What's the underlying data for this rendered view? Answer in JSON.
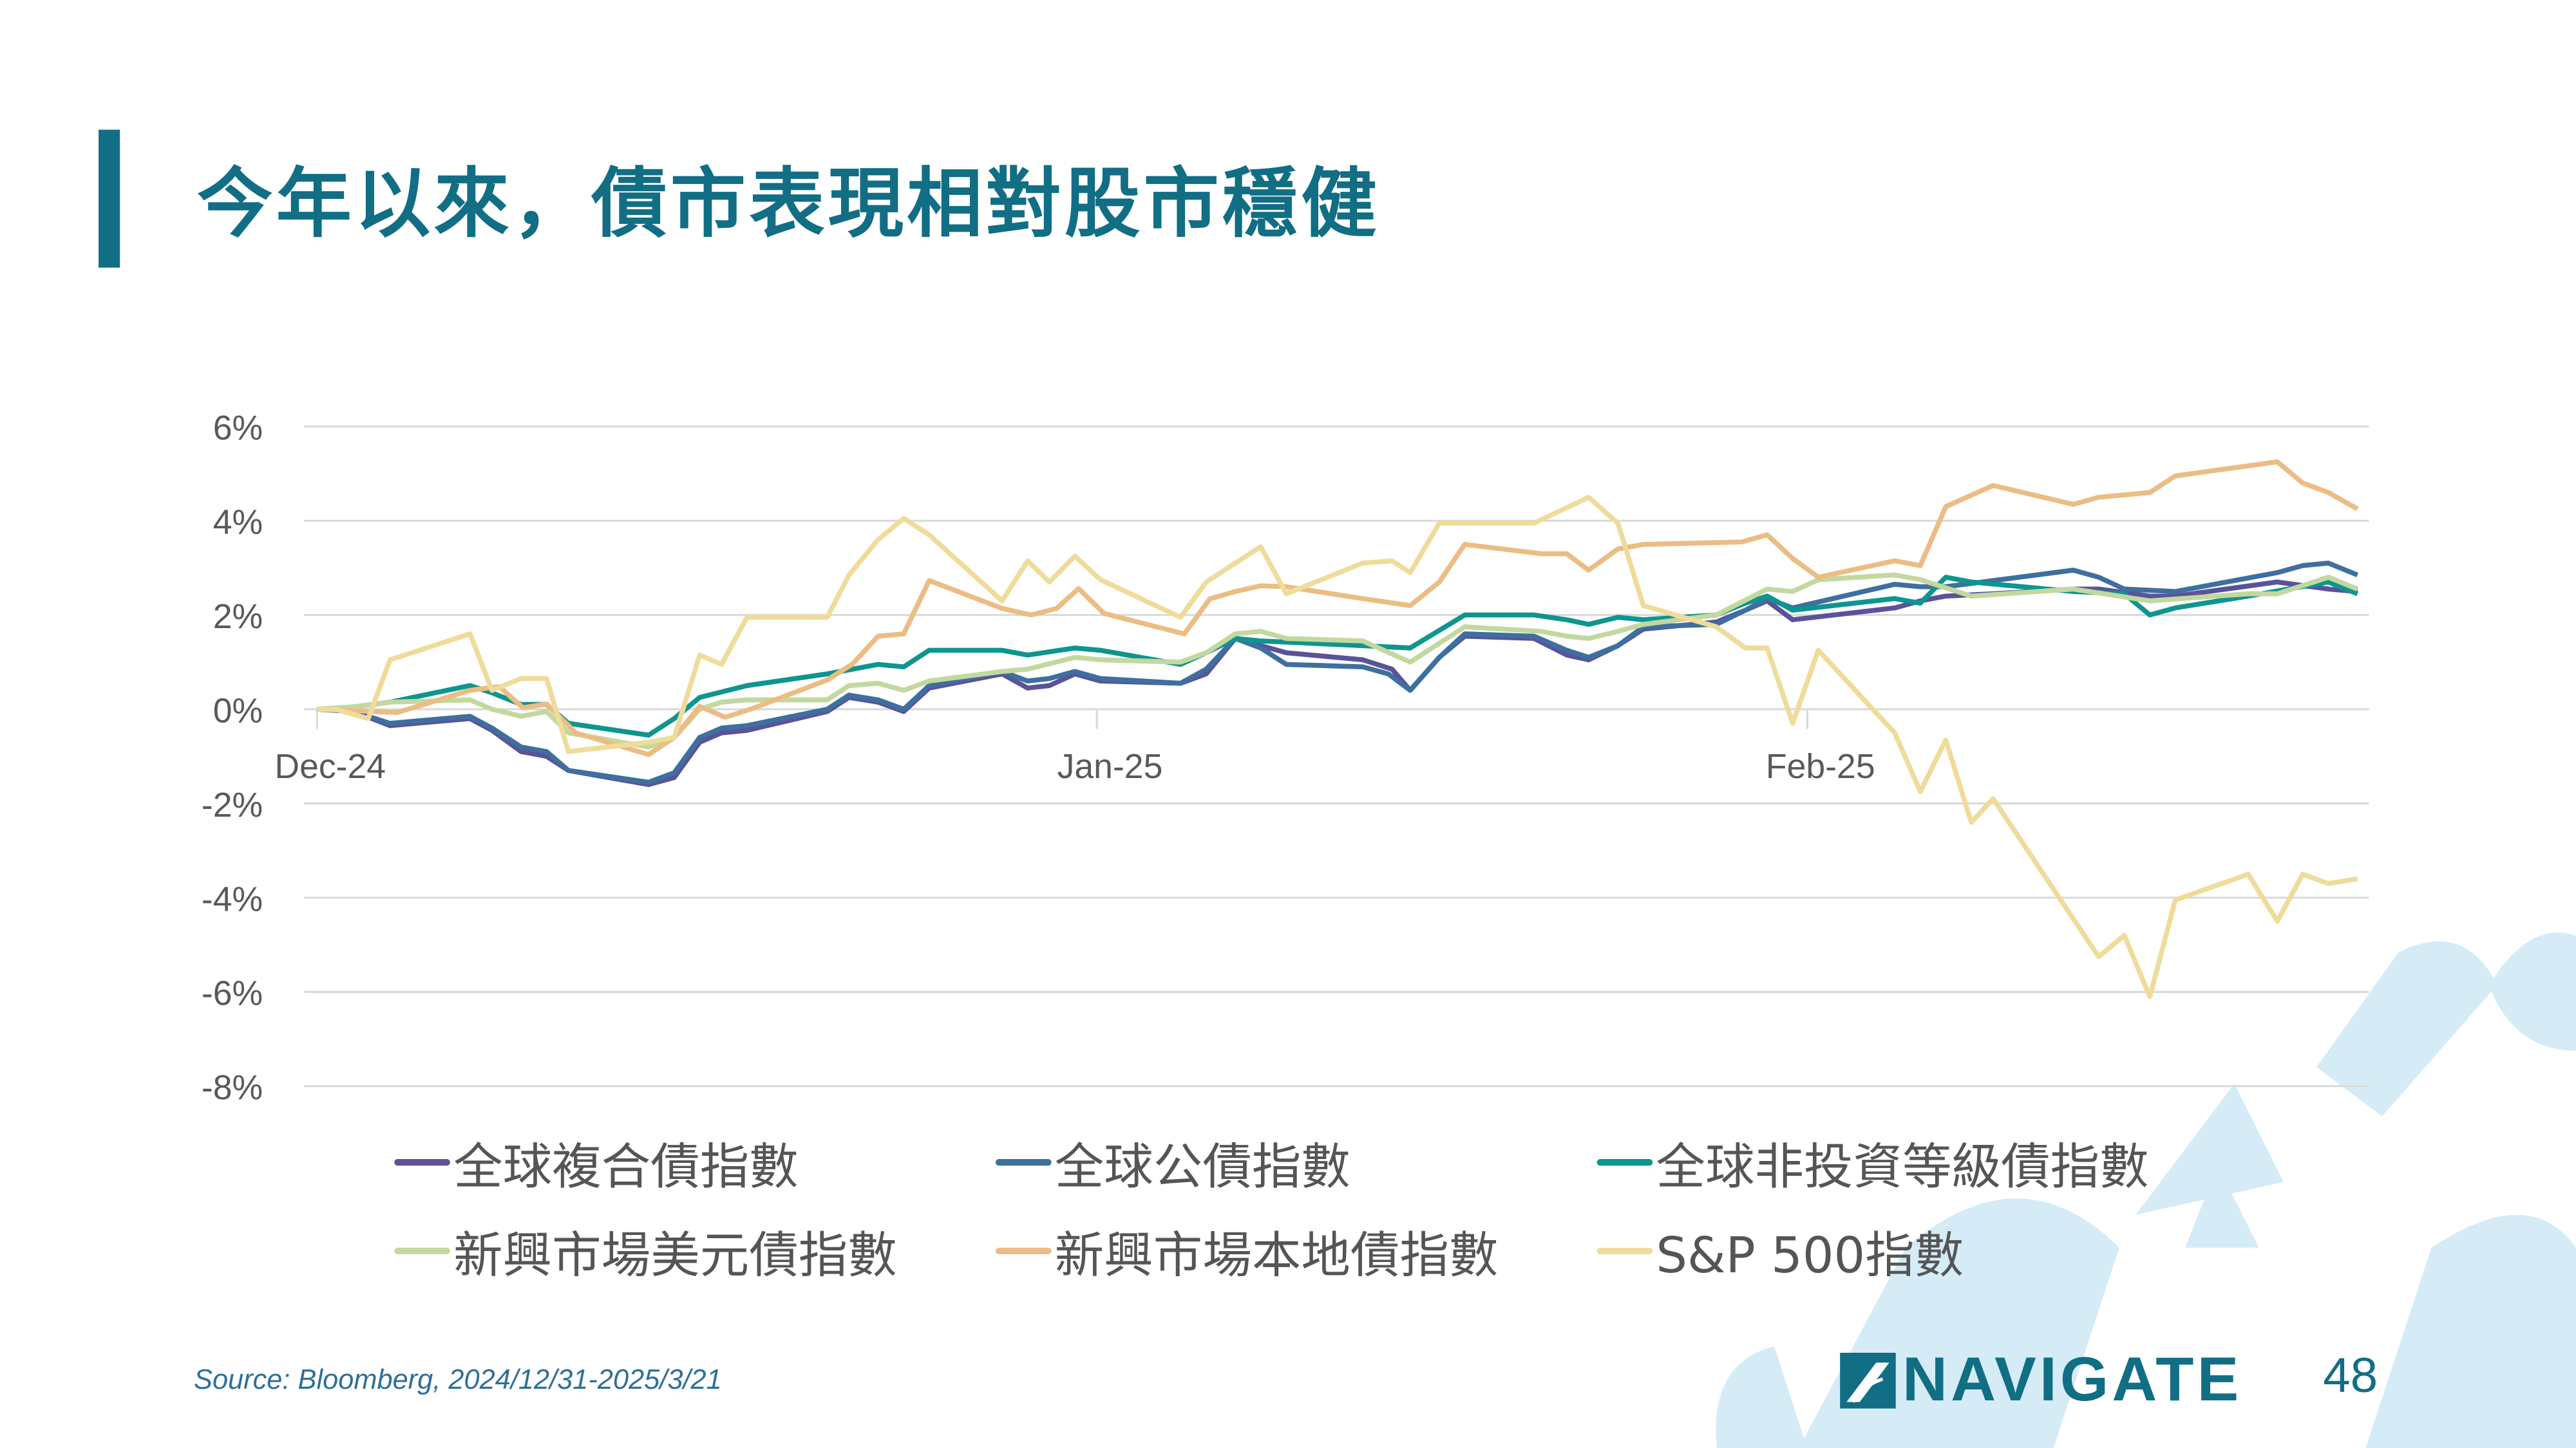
{
  "title": "今年以來，債市表現相對股市穩健",
  "source": "Source: Bloomberg, 2024/12/31-2025/3/21",
  "logo_text": "NAVIGATE",
  "page_number": "48",
  "chart_data": {
    "type": "line",
    "title": "",
    "xlabel": "",
    "ylabel": "",
    "x_unit": "trading days since 2024/12/31",
    "xlim": [
      0,
      56
    ],
    "ylim": [
      -8,
      6
    ],
    "yticks": [
      6,
      4,
      2,
      0,
      -2,
      -4,
      -6,
      -8
    ],
    "ytick_labels": [
      "6%",
      "4%",
      "2%",
      "0%",
      "-2%",
      "-4%",
      "-6%",
      "-8%"
    ],
    "xticks": [
      {
        "label": "Dec-24",
        "x": 0
      },
      {
        "label": "Jan-25",
        "x": 21.4
      },
      {
        "label": "Feb-25",
        "x": 40.9
      }
    ],
    "grid": true,
    "legend_position": "bottom",
    "series": [
      {
        "name": "全球複合債指數",
        "color": "#5a5399",
        "points": [
          [
            0,
            0
          ],
          [
            1,
            -0.05
          ],
          [
            2,
            -0.35
          ],
          [
            4.2,
            -0.2
          ],
          [
            4.8,
            -0.45
          ],
          [
            5.6,
            -0.9
          ],
          [
            6.3,
            -1.0
          ],
          [
            6.9,
            -1.3
          ],
          [
            9.1,
            -1.6
          ],
          [
            9.8,
            -1.45
          ],
          [
            10.5,
            -0.7
          ],
          [
            11.1,
            -0.5
          ],
          [
            11.8,
            -0.45
          ],
          [
            14,
            -0.05
          ],
          [
            14.6,
            0.25
          ],
          [
            15.4,
            0.15
          ],
          [
            16.1,
            -0.05
          ],
          [
            16.8,
            0.45
          ],
          [
            18.8,
            0.75
          ],
          [
            19.5,
            0.45
          ],
          [
            20.1,
            0.5
          ],
          [
            20.8,
            0.75
          ],
          [
            21.5,
            0.6
          ],
          [
            23.7,
            0.55
          ],
          [
            24.4,
            0.75
          ],
          [
            25.2,
            1.5
          ],
          [
            26.6,
            1.2
          ],
          [
            28.7,
            1.05
          ],
          [
            29.5,
            0.85
          ],
          [
            30,
            0.4
          ],
          [
            30.8,
            1.1
          ],
          [
            31.5,
            1.55
          ],
          [
            33.4,
            1.5
          ],
          [
            34.3,
            1.15
          ],
          [
            34.9,
            1.05
          ],
          [
            35.7,
            1.35
          ],
          [
            36.4,
            1.7
          ],
          [
            38.4,
            1.85
          ],
          [
            39.2,
            2.1
          ],
          [
            39.8,
            2.3
          ],
          [
            40.5,
            1.9
          ],
          [
            43.3,
            2.15
          ],
          [
            44,
            2.3
          ],
          [
            44.7,
            2.4
          ],
          [
            46,
            2.45
          ],
          [
            48.2,
            2.55
          ],
          [
            48.9,
            2.55
          ],
          [
            50.3,
            2.4
          ],
          [
            51,
            2.4
          ],
          [
            53.8,
            2.7
          ],
          [
            55.2,
            2.55
          ],
          [
            56,
            2.5
          ]
        ]
      },
      {
        "name": "全球公債指數",
        "color": "#3e6f9f",
        "points": [
          [
            0,
            0
          ],
          [
            1,
            -0.05
          ],
          [
            2,
            -0.3
          ],
          [
            4.2,
            -0.15
          ],
          [
            4.8,
            -0.4
          ],
          [
            5.6,
            -0.8
          ],
          [
            6.3,
            -0.9
          ],
          [
            6.9,
            -1.3
          ],
          [
            9.1,
            -1.55
          ],
          [
            9.8,
            -1.35
          ],
          [
            10.5,
            -0.6
          ],
          [
            11.1,
            -0.4
          ],
          [
            11.8,
            -0.35
          ],
          [
            14,
            0
          ],
          [
            14.6,
            0.3
          ],
          [
            15.4,
            0.2
          ],
          [
            16.1,
            0
          ],
          [
            16.8,
            0.5
          ],
          [
            18.8,
            0.8
          ],
          [
            19.5,
            0.6
          ],
          [
            20.1,
            0.65
          ],
          [
            20.8,
            0.8
          ],
          [
            21.5,
            0.65
          ],
          [
            23.7,
            0.55
          ],
          [
            24.4,
            0.85
          ],
          [
            25.2,
            1.5
          ],
          [
            25.9,
            1.3
          ],
          [
            26.6,
            0.95
          ],
          [
            28.7,
            0.9
          ],
          [
            29.4,
            0.75
          ],
          [
            30,
            0.4
          ],
          [
            30.8,
            1.1
          ],
          [
            31.5,
            1.6
          ],
          [
            33.4,
            1.55
          ],
          [
            34.3,
            1.25
          ],
          [
            34.9,
            1.1
          ],
          [
            35.7,
            1.35
          ],
          [
            36.4,
            1.75
          ],
          [
            38.4,
            1.8
          ],
          [
            39.2,
            2.1
          ],
          [
            39.8,
            2.35
          ],
          [
            40.5,
            2.15
          ],
          [
            43.3,
            2.65
          ],
          [
            44,
            2.6
          ],
          [
            44.7,
            2.6
          ],
          [
            48.2,
            2.95
          ],
          [
            48.9,
            2.8
          ],
          [
            49.6,
            2.55
          ],
          [
            51,
            2.5
          ],
          [
            53.8,
            2.9
          ],
          [
            54.5,
            3.05
          ],
          [
            55.2,
            3.1
          ],
          [
            56,
            2.85
          ]
        ]
      },
      {
        "name": "全球非投資等級債指數",
        "color": "#0e958f",
        "points": [
          [
            0,
            0
          ],
          [
            1,
            0.05
          ],
          [
            2,
            0.15
          ],
          [
            4.2,
            0.5
          ],
          [
            4.8,
            0.35
          ],
          [
            5.6,
            0.1
          ],
          [
            6.3,
            0.1
          ],
          [
            6.9,
            -0.3
          ],
          [
            9.1,
            -0.55
          ],
          [
            9.8,
            -0.2
          ],
          [
            10.5,
            0.25
          ],
          [
            11.8,
            0.5
          ],
          [
            14,
            0.75
          ],
          [
            15.4,
            0.95
          ],
          [
            16.1,
            0.9
          ],
          [
            16.8,
            1.25
          ],
          [
            18.8,
            1.25
          ],
          [
            19.5,
            1.15
          ],
          [
            20.8,
            1.3
          ],
          [
            21.5,
            1.25
          ],
          [
            23.7,
            0.95
          ],
          [
            24.4,
            1.2
          ],
          [
            25.2,
            1.5
          ],
          [
            25.9,
            1.45
          ],
          [
            28.7,
            1.35
          ],
          [
            30,
            1.3
          ],
          [
            31.5,
            2.0
          ],
          [
            33.4,
            2.0
          ],
          [
            34.3,
            1.9
          ],
          [
            34.9,
            1.8
          ],
          [
            35.7,
            1.95
          ],
          [
            36.4,
            1.9
          ],
          [
            38.4,
            2.0
          ],
          [
            39.2,
            2.25
          ],
          [
            39.8,
            2.4
          ],
          [
            40.5,
            2.1
          ],
          [
            43.3,
            2.35
          ],
          [
            44,
            2.25
          ],
          [
            44.7,
            2.8
          ],
          [
            45.4,
            2.7
          ],
          [
            48.2,
            2.5
          ],
          [
            49.6,
            2.45
          ],
          [
            50.3,
            2.0
          ],
          [
            51,
            2.15
          ],
          [
            53,
            2.4
          ],
          [
            55.2,
            2.7
          ],
          [
            56,
            2.45
          ]
        ]
      },
      {
        "name": "新興市場美元債指數",
        "color": "#c3d89f",
        "points": [
          [
            0,
            0
          ],
          [
            1,
            0.05
          ],
          [
            2,
            0.15
          ],
          [
            4.2,
            0.2
          ],
          [
            4.8,
            0.0
          ],
          [
            5.6,
            -0.15
          ],
          [
            6.3,
            -0.05
          ],
          [
            6.9,
            -0.5
          ],
          [
            9.1,
            -0.8
          ],
          [
            9.8,
            -0.6
          ],
          [
            10.5,
            0.0
          ],
          [
            11.1,
            0.15
          ],
          [
            11.8,
            0.2
          ],
          [
            14,
            0.2
          ],
          [
            14.6,
            0.5
          ],
          [
            15.4,
            0.55
          ],
          [
            16.1,
            0.4
          ],
          [
            16.8,
            0.6
          ],
          [
            18.8,
            0.8
          ],
          [
            19.5,
            0.85
          ],
          [
            20.8,
            1.1
          ],
          [
            21.5,
            1.05
          ],
          [
            23.7,
            1.0
          ],
          [
            24.4,
            1.2
          ],
          [
            25.2,
            1.6
          ],
          [
            25.9,
            1.65
          ],
          [
            26.6,
            1.5
          ],
          [
            28.7,
            1.45
          ],
          [
            30,
            1.0
          ],
          [
            31.5,
            1.75
          ],
          [
            33.6,
            1.65
          ],
          [
            34.3,
            1.55
          ],
          [
            34.9,
            1.5
          ],
          [
            35.7,
            1.65
          ],
          [
            36.4,
            1.8
          ],
          [
            38.4,
            2.0
          ],
          [
            39.8,
            2.55
          ],
          [
            40.5,
            2.5
          ],
          [
            41.2,
            2.75
          ],
          [
            43.3,
            2.85
          ],
          [
            44,
            2.75
          ],
          [
            45.4,
            2.4
          ],
          [
            48.2,
            2.55
          ],
          [
            50.3,
            2.3
          ],
          [
            53,
            2.45
          ],
          [
            53.8,
            2.45
          ],
          [
            55.2,
            2.8
          ],
          [
            56,
            2.55
          ]
        ]
      },
      {
        "name": "新興市場本地債指數",
        "color": "#ebbd84",
        "points": [
          [
            0,
            0
          ],
          [
            1.5,
            -0.05
          ],
          [
            2.2,
            -0.07
          ],
          [
            4.2,
            0.4
          ],
          [
            5.0,
            0.48
          ],
          [
            5.65,
            0.03
          ],
          [
            6.3,
            0.11
          ],
          [
            7.1,
            -0.5
          ],
          [
            9.1,
            -0.96
          ],
          [
            9.8,
            -0.6
          ],
          [
            10.5,
            0.06
          ],
          [
            11.2,
            -0.17
          ],
          [
            11.9,
            0
          ],
          [
            14,
            0.62
          ],
          [
            14.7,
            0.96
          ],
          [
            15.4,
            1.55
          ],
          [
            16.1,
            1.6
          ],
          [
            16.8,
            2.73
          ],
          [
            18.8,
            2.14
          ],
          [
            19.6,
            2.0
          ],
          [
            20.3,
            2.14
          ],
          [
            20.9,
            2.56
          ],
          [
            21.6,
            2.03
          ],
          [
            23.8,
            1.6
          ],
          [
            24.5,
            2.34
          ],
          [
            25.2,
            2.5
          ],
          [
            25.9,
            2.62
          ],
          [
            26.6,
            2.6
          ],
          [
            28.7,
            2.35
          ],
          [
            30,
            2.2
          ],
          [
            30.8,
            2.7
          ],
          [
            31.5,
            3.5
          ],
          [
            33.6,
            3.3
          ],
          [
            34.3,
            3.3
          ],
          [
            34.9,
            2.95
          ],
          [
            35.7,
            3.4
          ],
          [
            36.4,
            3.5
          ],
          [
            39.1,
            3.55
          ],
          [
            39.8,
            3.7
          ],
          [
            40.5,
            3.2
          ],
          [
            41.2,
            2.8
          ],
          [
            43.3,
            3.15
          ],
          [
            44,
            3.05
          ],
          [
            44.7,
            4.3
          ],
          [
            46,
            4.75
          ],
          [
            48.2,
            4.35
          ],
          [
            48.9,
            4.5
          ],
          [
            50.3,
            4.6
          ],
          [
            51,
            4.95
          ],
          [
            53.8,
            5.25
          ],
          [
            54.5,
            4.8
          ],
          [
            55.2,
            4.6
          ],
          [
            56,
            4.25
          ]
        ]
      },
      {
        "name": "S&P 500指數",
        "color": "#efdc9b",
        "points": [
          [
            0,
            0
          ],
          [
            0.5,
            0
          ],
          [
            1.4,
            -0.2
          ],
          [
            2,
            1.05
          ],
          [
            4.2,
            1.6
          ],
          [
            4.8,
            0.4
          ],
          [
            5.6,
            0.65
          ],
          [
            6.3,
            0.65
          ],
          [
            6.9,
            -0.9
          ],
          [
            9.1,
            -0.7
          ],
          [
            9.8,
            -0.6
          ],
          [
            10.5,
            1.15
          ],
          [
            11.1,
            0.95
          ],
          [
            11.8,
            1.95
          ],
          [
            14,
            1.95
          ],
          [
            14.6,
            2.85
          ],
          [
            15.4,
            3.6
          ],
          [
            16.1,
            4.05
          ],
          [
            16.8,
            3.7
          ],
          [
            18.8,
            2.3
          ],
          [
            19.5,
            3.15
          ],
          [
            20.1,
            2.7
          ],
          [
            20.8,
            3.25
          ],
          [
            21.5,
            2.75
          ],
          [
            23.7,
            1.95
          ],
          [
            24.4,
            2.7
          ],
          [
            25.9,
            3.45
          ],
          [
            26.6,
            2.45
          ],
          [
            28.7,
            3.1
          ],
          [
            29.5,
            3.15
          ],
          [
            30,
            2.9
          ],
          [
            30.8,
            3.95
          ],
          [
            33.4,
            3.95
          ],
          [
            34.9,
            4.5
          ],
          [
            35.7,
            3.95
          ],
          [
            36.4,
            2.2
          ],
          [
            38.4,
            1.75
          ],
          [
            39.2,
            1.3
          ],
          [
            39.8,
            1.3
          ],
          [
            40.5,
            -0.3
          ],
          [
            41.2,
            1.25
          ],
          [
            43.3,
            -0.5
          ],
          [
            44,
            -1.75
          ],
          [
            44.7,
            -0.65
          ],
          [
            45.4,
            -2.4
          ],
          [
            46,
            -1.9
          ],
          [
            48.2,
            -4.45
          ],
          [
            48.9,
            -5.25
          ],
          [
            49.6,
            -4.8
          ],
          [
            50.3,
            -6.1
          ],
          [
            51,
            -4.05
          ],
          [
            53,
            -3.5
          ],
          [
            53.8,
            -4.5
          ],
          [
            54.5,
            -3.5
          ],
          [
            55.2,
            -3.7
          ],
          [
            56,
            -3.6
          ]
        ]
      }
    ]
  }
}
